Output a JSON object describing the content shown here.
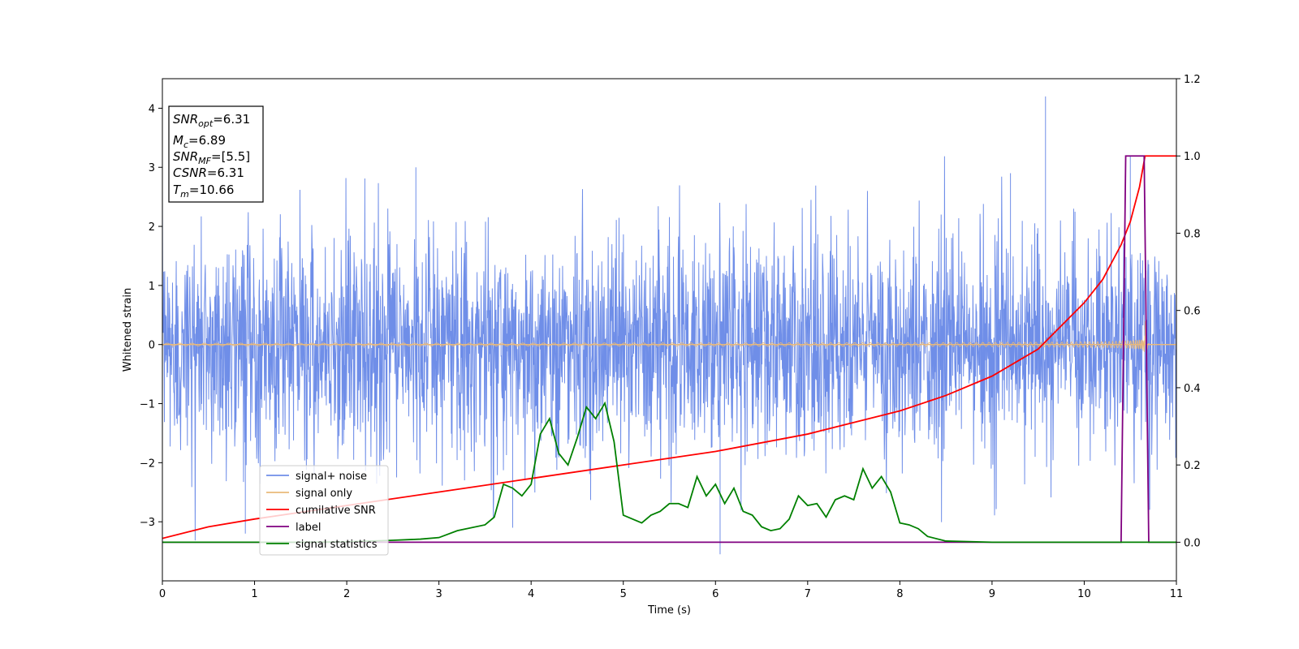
{
  "chart_data": {
    "type": "line",
    "title": "",
    "xlabel": "Time (s)",
    "ylabel": "Whitened strain",
    "y2label": "",
    "xlim": [
      0,
      11
    ],
    "ylim": [
      -4,
      4.5
    ],
    "y2lim": [
      -0.1,
      1.2
    ],
    "xticks": [
      "0",
      "1",
      "2",
      "3",
      "4",
      "5",
      "6",
      "7",
      "8",
      "9",
      "10",
      "11"
    ],
    "yticks": [
      "−3",
      "−2",
      "−1",
      "0",
      "1",
      "2",
      "3",
      "4"
    ],
    "y2ticks": [
      "0.0",
      "0.2",
      "0.4",
      "0.6",
      "0.8",
      "1.0",
      "1.2"
    ],
    "grid": false,
    "legend_position": "lower-left",
    "annotation": {
      "snr_opt": {
        "label": "SNR",
        "sub": "opt",
        "value": "=6.31"
      },
      "mc": {
        "label": "M",
        "sub": "c",
        "value": "=6.89"
      },
      "snr_mf": {
        "label": "SNR",
        "sub": "MF",
        "value": "=[5.5]"
      },
      "csnr": {
        "label": "CSNR",
        "sub": "",
        "value": "=6.31"
      },
      "tm": {
        "label": "T",
        "sub": "m",
        "value": "=10.66"
      }
    },
    "series": [
      {
        "name": "signal+ noise",
        "axis": "left",
        "color": "#6f8ee8",
        "kind": "noise",
        "sigma": 0.75,
        "envelope_max": 2.6,
        "envelope_min": -2.6,
        "outliers": [
          [
            0.9,
            -3.2
          ],
          [
            3.8,
            -3.1
          ],
          [
            6.05,
            -3.55
          ],
          [
            9.58,
            4.2
          ],
          [
            2.75,
            3.0
          ],
          [
            9.2,
            2.9
          ],
          [
            10.7,
            -3.0
          ],
          [
            10.5,
            3.2
          ]
        ]
      },
      {
        "name": "signal only",
        "axis": "left",
        "color": "#e9b97a",
        "kind": "chirp",
        "t_merge": 10.66,
        "amplitude_at_merge": 0.4
      },
      {
        "name": "cumilative SNR",
        "axis": "right",
        "color": "#ff0000",
        "x": [
          0,
          0.5,
          1,
          2,
          3,
          4,
          5,
          6,
          7,
          8,
          8.5,
          9,
          9.5,
          10,
          10.2,
          10.4,
          10.5,
          10.6,
          10.66,
          10.7,
          11
        ],
        "y": [
          0.01,
          0.04,
          0.06,
          0.095,
          0.13,
          0.165,
          0.2,
          0.235,
          0.28,
          0.34,
          0.38,
          0.43,
          0.5,
          0.62,
          0.68,
          0.77,
          0.83,
          0.92,
          1.0,
          1.0,
          1.0
        ]
      },
      {
        "name": "label",
        "axis": "right",
        "color": "#800080",
        "x": [
          0,
          10.4,
          10.45,
          10.65,
          10.7,
          11
        ],
        "y": [
          0,
          0,
          1,
          1,
          0,
          0
        ]
      },
      {
        "name": "signal statistics",
        "axis": "right",
        "color": "#008000",
        "x": [
          0,
          1,
          1.5,
          2,
          2.5,
          2.8,
          3,
          3.2,
          3.5,
          3.6,
          3.7,
          3.8,
          3.9,
          4.0,
          4.1,
          4.2,
          4.3,
          4.4,
          4.5,
          4.6,
          4.7,
          4.8,
          4.9,
          5.0,
          5.1,
          5.2,
          5.3,
          5.4,
          5.5,
          5.6,
          5.7,
          5.8,
          5.9,
          6.0,
          6.1,
          6.2,
          6.3,
          6.4,
          6.5,
          6.6,
          6.7,
          6.8,
          6.9,
          7.0,
          7.1,
          7.2,
          7.3,
          7.4,
          7.5,
          7.6,
          7.7,
          7.8,
          7.9,
          8.0,
          8.1,
          8.2,
          8.3,
          8.5,
          9,
          10,
          11
        ],
        "y": [
          0.0,
          0.0,
          0.0,
          0.001,
          0.005,
          0.008,
          0.012,
          0.03,
          0.045,
          0.065,
          0.15,
          0.14,
          0.12,
          0.15,
          0.28,
          0.32,
          0.23,
          0.2,
          0.27,
          0.35,
          0.32,
          0.36,
          0.26,
          0.07,
          0.06,
          0.05,
          0.07,
          0.08,
          0.1,
          0.1,
          0.09,
          0.17,
          0.12,
          0.15,
          0.1,
          0.14,
          0.08,
          0.07,
          0.04,
          0.03,
          0.035,
          0.06,
          0.12,
          0.095,
          0.1,
          0.065,
          0.11,
          0.12,
          0.11,
          0.19,
          0.14,
          0.17,
          0.13,
          0.05,
          0.045,
          0.035,
          0.015,
          0.003,
          0.0,
          0.0,
          0.0
        ]
      }
    ]
  }
}
